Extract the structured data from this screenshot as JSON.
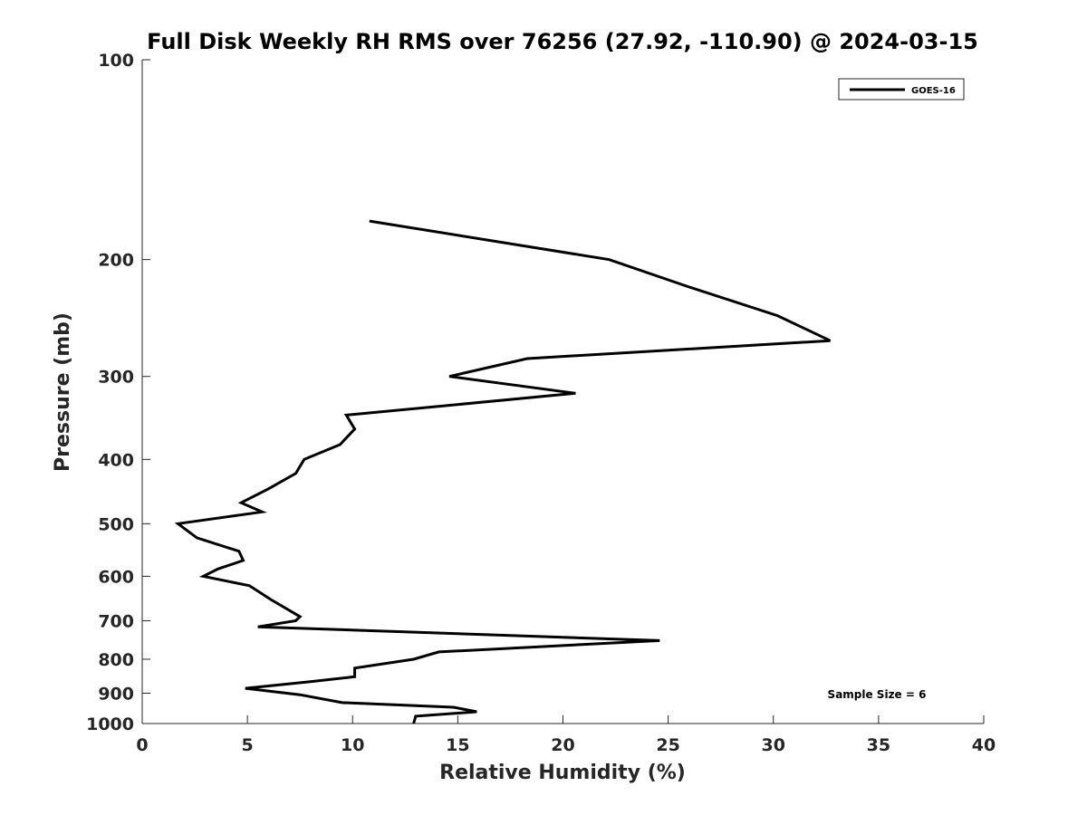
{
  "chart_data": {
    "type": "line",
    "title": "Full Disk Weekly RH RMS over 76256 (27.92, -110.90) @ 2024-03-15",
    "xlabel": "Relative Humidity (%)",
    "ylabel": "Pressure (mb)",
    "xlim": [
      0,
      40
    ],
    "ylim": [
      100,
      1000
    ],
    "y_scale": "log",
    "y_reversed": true,
    "grid": false,
    "legend_position": "top-right",
    "x_ticks": [
      0,
      5,
      10,
      15,
      20,
      25,
      30,
      35,
      40
    ],
    "x_tick_labels": [
      "0",
      "5",
      "10",
      "15",
      "20",
      "25",
      "30",
      "35",
      "40"
    ],
    "y_ticks": [
      100,
      200,
      300,
      400,
      500,
      600,
      700,
      800,
      900,
      1000
    ],
    "y_tick_labels": [
      "100",
      "200",
      "300",
      "400",
      "500",
      "600",
      "700",
      "800",
      "900",
      "1000"
    ],
    "series": [
      {
        "name": "GOES-16",
        "color": "#000000",
        "points": [
          {
            "x": 10.8,
            "p": 175
          },
          {
            "x": 22.2,
            "p": 200
          },
          {
            "x": 26.0,
            "p": 220
          },
          {
            "x": 30.2,
            "p": 243
          },
          {
            "x": 32.7,
            "p": 265
          },
          {
            "x": 18.3,
            "p": 282
          },
          {
            "x": 14.6,
            "p": 300
          },
          {
            "x": 20.6,
            "p": 318
          },
          {
            "x": 9.7,
            "p": 343
          },
          {
            "x": 10.1,
            "p": 360
          },
          {
            "x": 9.4,
            "p": 380
          },
          {
            "x": 7.7,
            "p": 400
          },
          {
            "x": 7.3,
            "p": 420
          },
          {
            "x": 6.0,
            "p": 443
          },
          {
            "x": 4.7,
            "p": 465
          },
          {
            "x": 5.7,
            "p": 480
          },
          {
            "x": 1.7,
            "p": 500
          },
          {
            "x": 2.6,
            "p": 525
          },
          {
            "x": 4.6,
            "p": 550
          },
          {
            "x": 4.8,
            "p": 568
          },
          {
            "x": 3.6,
            "p": 585
          },
          {
            "x": 2.9,
            "p": 600
          },
          {
            "x": 5.1,
            "p": 620
          },
          {
            "x": 6.1,
            "p": 650
          },
          {
            "x": 7.5,
            "p": 690
          },
          {
            "x": 7.3,
            "p": 700
          },
          {
            "x": 5.5,
            "p": 715
          },
          {
            "x": 24.6,
            "p": 750
          },
          {
            "x": 14.1,
            "p": 780
          },
          {
            "x": 12.9,
            "p": 800
          },
          {
            "x": 10.1,
            "p": 825
          },
          {
            "x": 10.1,
            "p": 850
          },
          {
            "x": 8.0,
            "p": 865
          },
          {
            "x": 4.9,
            "p": 885
          },
          {
            "x": 7.5,
            "p": 905
          },
          {
            "x": 9.5,
            "p": 930
          },
          {
            "x": 14.8,
            "p": 945
          },
          {
            "x": 15.9,
            "p": 960
          },
          {
            "x": 13.0,
            "p": 975
          },
          {
            "x": 12.9,
            "p": 1000
          }
        ]
      }
    ],
    "annotations": [
      {
        "text": "Sample Size = 6"
      }
    ]
  }
}
